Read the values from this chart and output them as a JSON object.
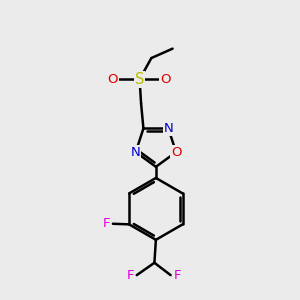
{
  "background_color": "#ebebeb",
  "atom_colors": {
    "C": "#000000",
    "N": "#0000cc",
    "O": "#dd0000",
    "S": "#bbbb00",
    "F": "#dd00dd"
  },
  "line_color": "#000000",
  "line_width": 1.8
}
